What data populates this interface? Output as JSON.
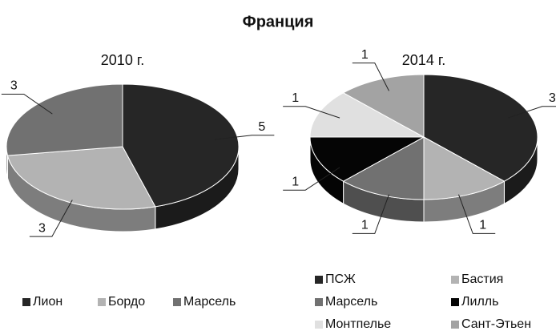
{
  "title": "Франция",
  "chart_data": [
    {
      "type": "pie",
      "title": "2010 г.",
      "categories": [
        "Лион",
        "Бордо",
        "Марсель"
      ],
      "values": [
        5,
        3,
        3
      ],
      "colors": [
        "#262626",
        "#b3b3b3",
        "#717171"
      ]
    },
    {
      "type": "pie",
      "title": "2014 г.",
      "categories": [
        "ПСЖ",
        "Бастия",
        "Марсель",
        "Лилль",
        "Монтпелье",
        "Сант-Этьен"
      ],
      "values": [
        3,
        1,
        1,
        1,
        1,
        1
      ],
      "colors": [
        "#262626",
        "#b3b3b3",
        "#717171",
        "#050505",
        "#e0e0e0",
        "#a3a3a3"
      ]
    }
  ]
}
